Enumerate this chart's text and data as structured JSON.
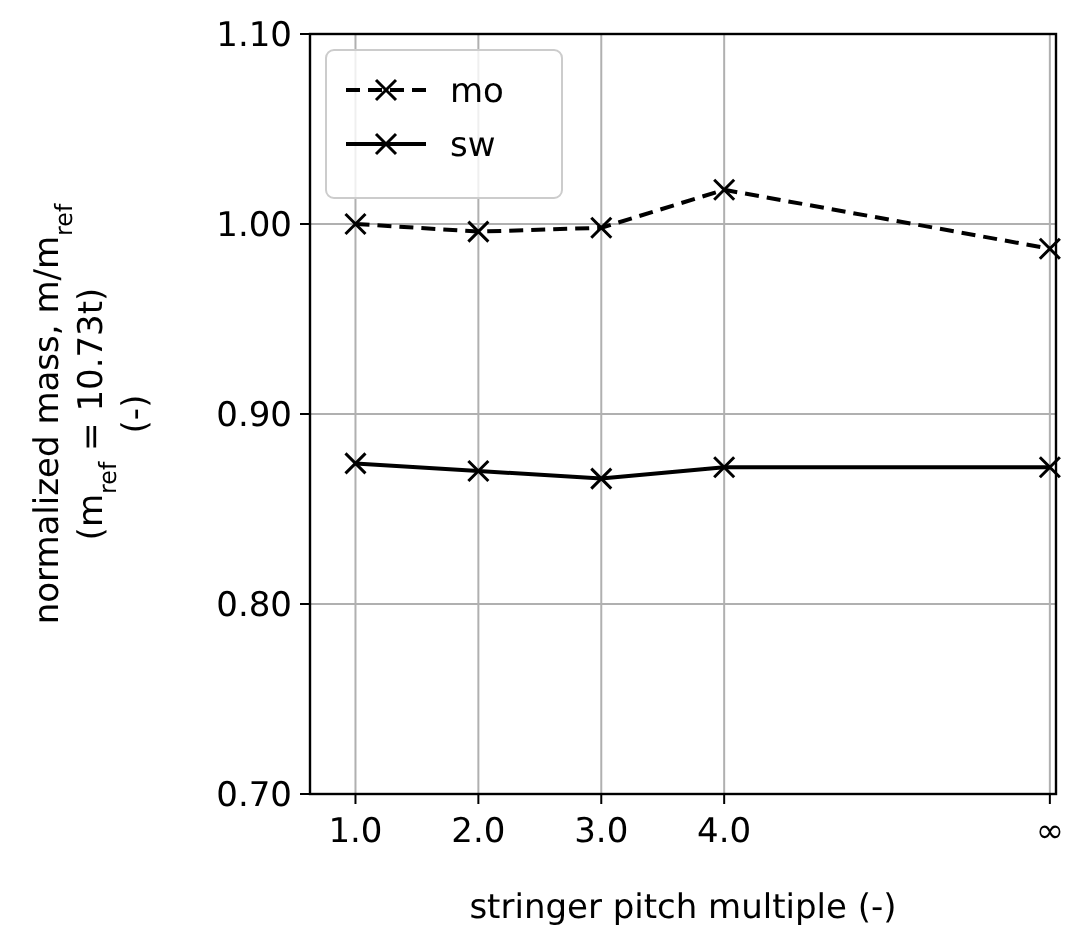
{
  "chart_data": {
    "type": "line",
    "xlabel": "stringer pitch multiple (-)",
    "ylabel": "normalized mass, m/m$_{ref}$\n(m$_{ref}$ = 10.73t)\n(-)",
    "x": [
      1,
      2,
      3,
      4,
      6.65
    ],
    "series": [
      {
        "name": "mo",
        "color": "#000000",
        "line_style": "dashed",
        "values": [
          1.0,
          0.996,
          0.998,
          1.018,
          0.987
        ]
      },
      {
        "name": "sw",
        "color": "#000000",
        "line_style": "solid",
        "values": [
          0.874,
          0.87,
          0.866,
          0.872,
          0.872
        ]
      }
    ],
    "xlim": [
      0.63,
      6.7
    ],
    "xticks": [
      {
        "value": 1,
        "label": "1.0"
      },
      {
        "value": 2,
        "label": "2.0"
      },
      {
        "value": 3,
        "label": "3.0"
      },
      {
        "value": 4,
        "label": "4.0"
      },
      {
        "value": 6.65,
        "label": "∞"
      }
    ],
    "ylim": [
      0.7,
      1.1
    ],
    "yticks": [
      {
        "value": 0.7,
        "label": "0.70"
      },
      {
        "value": 0.8,
        "label": "0.80"
      },
      {
        "value": 0.9,
        "label": "0.90"
      },
      {
        "value": 1.0,
        "label": "1.00"
      },
      {
        "value": 1.1,
        "label": "1.10"
      }
    ],
    "grid": true,
    "legend": "top left",
    "marker": "cross"
  }
}
